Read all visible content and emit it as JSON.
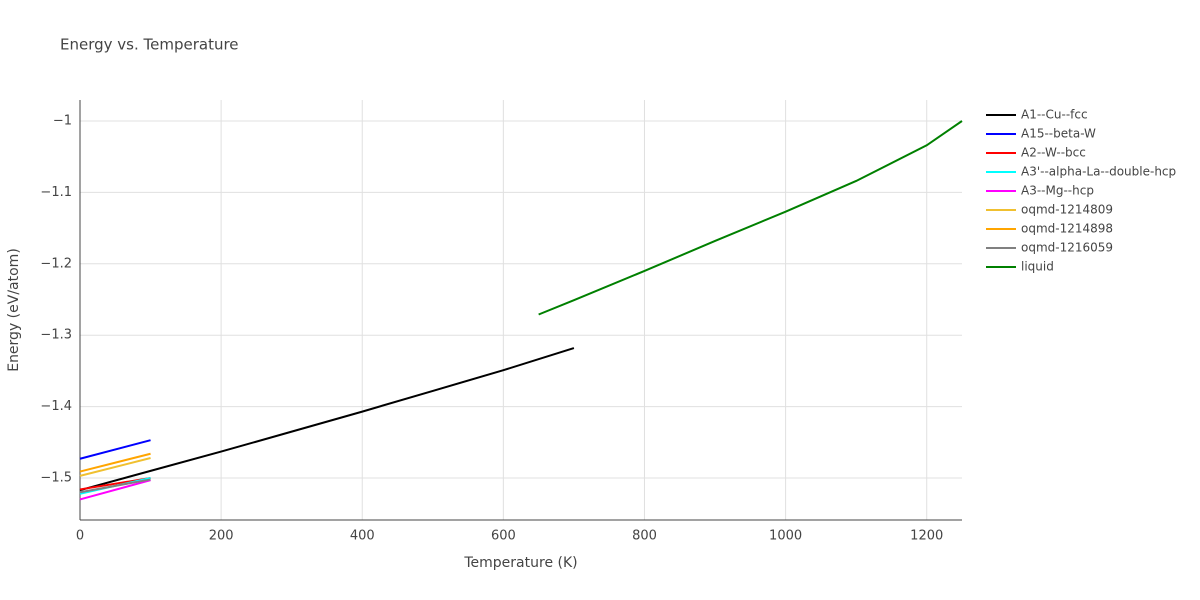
{
  "chart_data": {
    "type": "line",
    "title": "Energy vs. Temperature",
    "x_label": "Temperature (K)",
    "y_label": "Energy (eV/atom)",
    "xlim": [
      0,
      1250
    ],
    "xticks": [
      0,
      200,
      400,
      600,
      800,
      1000,
      1200
    ],
    "ylim": [
      -1.5588,
      -0.9706
    ],
    "yticks": [
      {
        "value": -1.5,
        "label": "−1.5"
      },
      {
        "value": -1.4,
        "label": "−1.4"
      },
      {
        "value": -1.3,
        "label": "−1.3"
      },
      {
        "value": -1.2,
        "label": "−1.2"
      },
      {
        "value": -1.1,
        "label": "−1.1"
      },
      {
        "value": -1,
        "label": "−1"
      }
    ],
    "grid": true,
    "legend": "right",
    "series": [
      {
        "name": "A1--Cu--fcc",
        "color": "#000000",
        "x": [
          0,
          100,
          200,
          300,
          400,
          500,
          600,
          700
        ],
        "values": [
          -1.517,
          -1.49,
          -1.463,
          -1.435,
          -1.407,
          -1.378,
          -1.349,
          -1.318
        ]
      },
      {
        "name": "A15--beta-W",
        "color": "#0000ff",
        "x": [
          0,
          100
        ],
        "values": [
          -1.473,
          -1.447
        ]
      },
      {
        "name": "A2--W--bcc",
        "color": "#ff0000",
        "x": [
          0,
          100
        ],
        "values": [
          -1.516,
          -1.5
        ]
      },
      {
        "name": "A3'--alpha-La--double-hcp",
        "color": "#00ffff",
        "x": [
          0,
          100
        ],
        "values": [
          -1.522,
          -1.5
        ]
      },
      {
        "name": "A3--Mg--hcp",
        "color": "#ff00ff",
        "x": [
          0,
          100
        ],
        "values": [
          -1.53,
          -1.503
        ]
      },
      {
        "name": "oqmd-1214809",
        "color": "#f0c030",
        "x": [
          0,
          100
        ],
        "values": [
          -1.497,
          -1.472
        ]
      },
      {
        "name": "oqmd-1214898",
        "color": "#ffa500",
        "x": [
          0,
          100
        ],
        "values": [
          -1.491,
          -1.466
        ]
      },
      {
        "name": "oqmd-1216059",
        "color": "#808080",
        "x": [
          0,
          100
        ],
        "values": [
          -1.52,
          -1.502
        ]
      },
      {
        "name": "liquid",
        "color": "#008000",
        "x": [
          650,
          700,
          800,
          900,
          1000,
          1100,
          1200,
          1250
        ],
        "values": [
          -1.271,
          -1.251,
          -1.21,
          -1.168,
          -1.127,
          -1.084,
          -1.034,
          -1.0
        ]
      }
    ]
  }
}
